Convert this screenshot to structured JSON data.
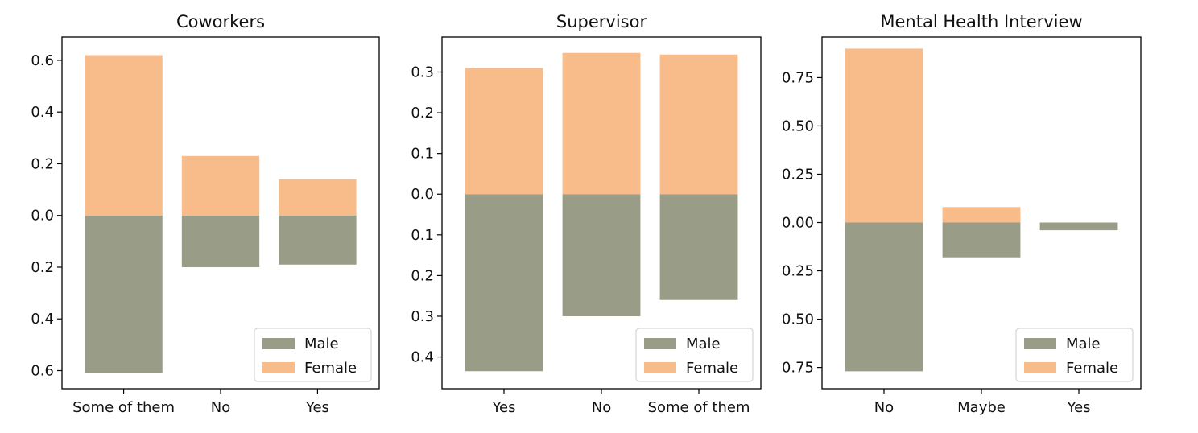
{
  "colors": {
    "male": "#999c86",
    "female": "#f8bb8a"
  },
  "chart_data": [
    {
      "type": "bar",
      "title": "Coworkers",
      "categories": [
        "Some of them",
        "No",
        "Yes"
      ],
      "series": [
        {
          "name": "Male",
          "values": [
            -0.61,
            -0.2,
            -0.19
          ]
        },
        {
          "name": "Female",
          "values": [
            0.62,
            0.23,
            0.14
          ]
        }
      ],
      "ylim": [
        -0.67,
        0.69
      ],
      "yticks": [
        0.6,
        0.4,
        0.2,
        0.0,
        -0.2,
        -0.4,
        -0.6
      ],
      "ytick_labels": [
        "0.6",
        "0.4",
        "0.2",
        "0.0",
        "0.2",
        "0.4",
        "0.6"
      ],
      "legend": "bottom-right",
      "grid": false
    },
    {
      "type": "bar",
      "title": "Supervisor",
      "categories": [
        "Yes",
        "No",
        "Some of them"
      ],
      "series": [
        {
          "name": "Male",
          "values": [
            -0.435,
            -0.3,
            -0.26
          ]
        },
        {
          "name": "Female",
          "values": [
            0.31,
            0.347,
            0.343
          ]
        }
      ],
      "ylim": [
        -0.478,
        0.386
      ],
      "yticks": [
        0.3,
        0.2,
        0.1,
        0.0,
        -0.1,
        -0.2,
        -0.3,
        -0.4
      ],
      "ytick_labels": [
        "0.3",
        "0.2",
        "0.1",
        "0.0",
        "0.1",
        "0.2",
        "0.3",
        "0.4"
      ],
      "legend": "bottom-right",
      "grid": false
    },
    {
      "type": "bar",
      "title": "Mental Health Interview",
      "categories": [
        "No",
        "Maybe",
        "Yes"
      ],
      "series": [
        {
          "name": "Male",
          "values": [
            -0.77,
            -0.18,
            -0.04
          ]
        },
        {
          "name": "Female",
          "values": [
            0.9,
            0.08,
            0.0
          ]
        }
      ],
      "ylim": [
        -0.86,
        0.96
      ],
      "yticks": [
        0.75,
        0.5,
        0.25,
        0.0,
        -0.25,
        -0.5,
        -0.75
      ],
      "ytick_labels": [
        "0.75",
        "0.50",
        "0.25",
        "0.00",
        "0.25",
        "0.50",
        "0.75"
      ],
      "legend": "bottom-right",
      "grid": false
    }
  ]
}
